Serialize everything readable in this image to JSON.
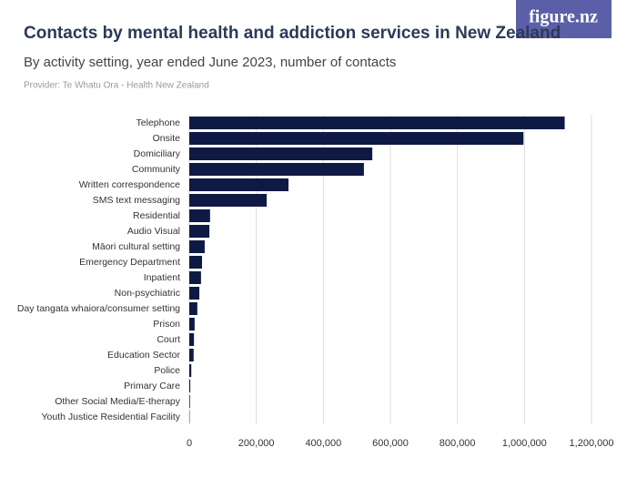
{
  "logo": "figure.nz",
  "chart_data": {
    "type": "hbar",
    "title": "Contacts by mental health and addiction services in New Zealand",
    "subtitle": "By activity setting, year ended June 2023, number of contacts",
    "provider": "Provider: Te Whatu Ora - Health New Zealand",
    "categories": [
      "Telephone",
      "Onsite",
      "Domiciliary",
      "Community",
      "Written correspondence",
      "SMS text messaging",
      "Residential",
      "Audio Visual",
      "Māori cultural setting",
      "Emergency Department",
      "Inpatient",
      "Non-psychiatric",
      "Day tangata whaiora/consumer setting",
      "Prison",
      "Court",
      "Education Sector",
      "Police",
      "Primary Care",
      "Other Social Media/E-therapy",
      "Youth Justice Residential Facility"
    ],
    "values": [
      1120000,
      997000,
      546000,
      521000,
      296000,
      231000,
      62000,
      60000,
      46000,
      38000,
      35000,
      30000,
      24000,
      16000,
      14000,
      13000,
      6000,
      3000,
      2000,
      1000
    ],
    "color": "#0f1a44",
    "xlim": [
      0,
      1200000
    ],
    "xticks": [
      0,
      {
        "value": 200000,
        "label": "200,000"
      },
      {
        "value": 400000,
        "label": "400,000"
      },
      {
        "value": 600000,
        "label": "600,000"
      },
      {
        "value": 800000,
        "label": "800,000"
      },
      {
        "value": 1000000,
        "label": "1,000,000"
      },
      {
        "value": 1200000,
        "label": "1,200,000"
      }
    ],
    "grid": true
  }
}
